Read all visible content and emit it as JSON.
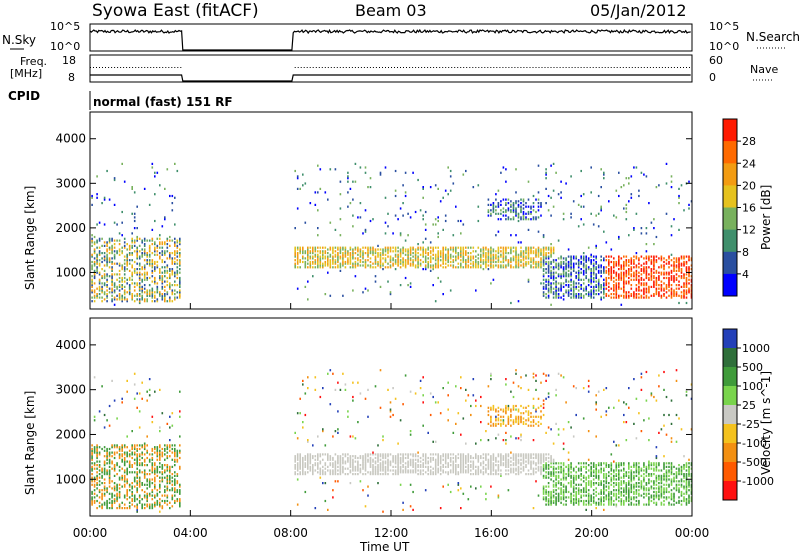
{
  "header": {
    "title": "Syowa East (fitACF)",
    "beam": "Beam 03",
    "date": "05/Jan/2012"
  },
  "aux_panels": {
    "nsky_label": "N.Sky",
    "nsky_ticks": [
      "10^5",
      "10^0"
    ],
    "nsearch_label": "N.Search",
    "nsearch_ticks": [
      "10^5",
      "10^0"
    ],
    "freq_label_1": "Freq.",
    "freq_label_2": "[MHz]",
    "freq_ticks": [
      "18",
      "8"
    ],
    "nave_label": "Nave",
    "nave_ticks": [
      "60",
      "0"
    ],
    "cpid_label": "CPID",
    "cpid_value": "normal (fast) 151 RF"
  },
  "colors": {
    "power_scale": [
      "#0000ff",
      "#2a4fa0",
      "#3f8f6c",
      "#78b15d",
      "#e6c21e",
      "#f39c12",
      "#ff6a00",
      "#ff1a00"
    ],
    "velocity_scale": [
      "#2340b8",
      "#2f6f3a",
      "#3f9b3a",
      "#79d44c",
      "#c9c9c4",
      "#f4c21e",
      "#f39012",
      "#ff5a00",
      "#ff1010"
    ],
    "ground_scatter": "#c8c8c0"
  },
  "chart_data": [
    {
      "type": "heatmap",
      "panel": "power",
      "ylabel": "Slant Range [km]",
      "ylim": [
        180,
        4600
      ],
      "yticks": [
        "1000",
        "2000",
        "3000",
        "4000"
      ],
      "xlim_hours": [
        0,
        24
      ],
      "data_gaps_hours": [
        [
          3.65,
          8.05
        ]
      ],
      "colorbar_label": "Power [dB]",
      "colorbar_ticks": [
        "4",
        "8",
        "12",
        "16",
        "20",
        "24",
        "28"
      ],
      "colorbar_range": [
        0,
        30
      ]
    },
    {
      "type": "heatmap",
      "panel": "velocity",
      "ylabel": "Slant Range [km]",
      "ylim": [
        180,
        4600
      ],
      "yticks": [
        "1000",
        "2000",
        "3000",
        "4000"
      ],
      "xlim_hours": [
        0,
        24
      ],
      "xlabel": "Time UT",
      "xticks": [
        "00:00",
        "04:00",
        "08:00",
        "12:00",
        "16:00",
        "20:00",
        "00:00"
      ],
      "data_gaps_hours": [
        [
          3.65,
          8.05
        ]
      ],
      "colorbar_label": "Velocity [m s^-1]",
      "colorbar_ticks": [
        "1000",
        "500",
        "100",
        "25",
        "-25",
        "-100",
        "-500",
        "-1000"
      ]
    }
  ]
}
